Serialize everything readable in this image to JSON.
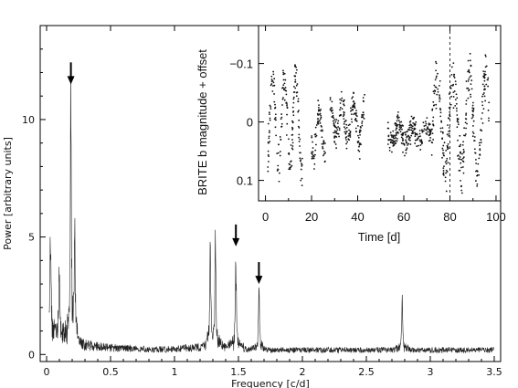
{
  "chart_data": [
    {
      "type": "line",
      "xlabel": "Frequency [c/d]",
      "ylabel": "Power [arbitrary units]",
      "xlim": [
        -0.05,
        3.55
      ],
      "ylim": [
        -0.3,
        14.0
      ],
      "xticks": [
        0,
        0.5,
        1,
        1.5,
        2,
        2.5,
        3,
        3.5
      ],
      "xtick_labels": [
        "0",
        "0.5",
        "1",
        "1.5",
        "2",
        "2.5",
        "3",
        "3.5"
      ],
      "yticks": [
        0,
        5,
        10
      ],
      "ytick_labels": [
        "0",
        "5",
        "10"
      ],
      "grid": false,
      "peaks": [
        {
          "x": 0.03,
          "y": 4.6
        },
        {
          "x": 0.1,
          "y": 3.5
        },
        {
          "x": 0.19,
          "y": 10.8
        },
        {
          "x": 0.22,
          "y": 4.3
        },
        {
          "x": 1.28,
          "y": 4.6
        },
        {
          "x": 1.32,
          "y": 4.2
        },
        {
          "x": 1.48,
          "y": 4.2
        },
        {
          "x": 1.66,
          "y": 2.8
        },
        {
          "x": 2.78,
          "y": 2.2
        }
      ],
      "arrows": [
        {
          "x": 0.19,
          "y": 11.5
        },
        {
          "x": 1.48,
          "y": 4.6
        },
        {
          "x": 1.66,
          "y": 3.0
        }
      ]
    },
    {
      "type": "scatter",
      "xlabel": "Time [d]",
      "ylabel": "BRITE b magnitude + offset",
      "xlim": [
        -3,
        102
      ],
      "ylim": [
        0.135,
        -0.165
      ],
      "y_inverted": true,
      "xticks": [
        0,
        20,
        40,
        60,
        80,
        100
      ],
      "xtick_labels": [
        "0",
        "20",
        "40",
        "60",
        "80",
        "100"
      ],
      "yticks": [
        -0.1,
        0,
        0.1
      ],
      "ytick_labels": [
        "−0.1",
        "0",
        "0.1"
      ],
      "reference_line": {
        "x": 80
      },
      "segments": [
        {
          "t": [
            1,
            16
          ],
          "mean": 0.0,
          "amp": 0.07,
          "period": 5.0,
          "noise": 0.035
        },
        {
          "t": [
            20,
            26
          ],
          "mean": 0.02,
          "amp": 0.04,
          "period": 5.0,
          "noise": 0.025
        },
        {
          "t": [
            28,
            43
          ],
          "mean": 0.0,
          "amp": 0.03,
          "period": 5.0,
          "noise": 0.025
        },
        {
          "t": [
            53,
            72
          ],
          "mean": 0.02,
          "amp": 0.015,
          "period": 6.0,
          "noise": 0.022
        },
        {
          "t": [
            72,
            97
          ],
          "mean": 0.0,
          "amp": 0.08,
          "period": 7.0,
          "noise": 0.04
        }
      ]
    }
  ]
}
